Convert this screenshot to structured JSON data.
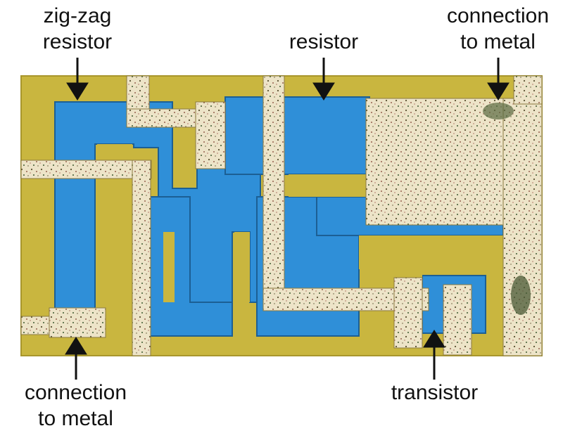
{
  "labels": {
    "zigzag_resistor": [
      "zig-zag",
      "resistor"
    ],
    "resistor": "resistor",
    "connection_top": [
      "connection",
      "to metal"
    ],
    "connection_bottom": [
      "connection",
      "to metal"
    ],
    "transistor": "transistor"
  },
  "colors": {
    "background": "#ffffff",
    "substrate": "#c9b63f",
    "substrate_edge": "#a8962c",
    "diffusion": "#2f8fd8",
    "diffusion_edge": "#1c5f94",
    "metal": "#ede4c8",
    "metal_speckle": "#5a5030",
    "arrow": "#111111"
  },
  "icons": {
    "arrows": "down-arrow / up-arrow",
    "die": "integrated-circuit-die-photo"
  }
}
